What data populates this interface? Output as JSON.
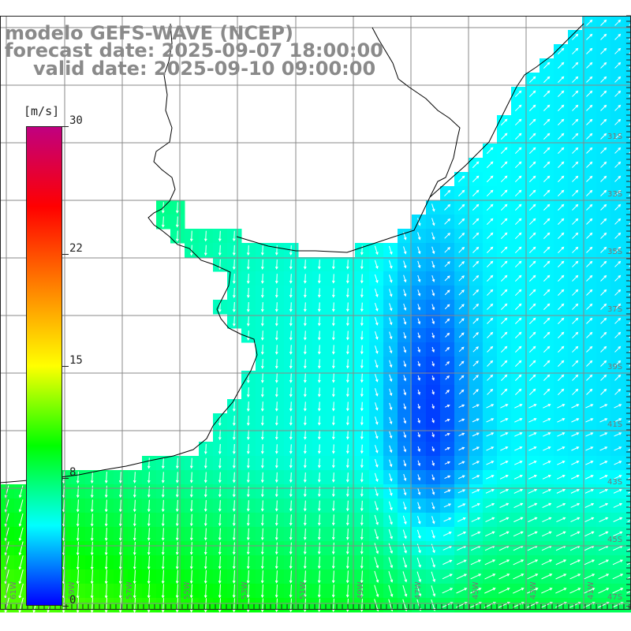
{
  "title": {
    "line1": "modelo GEFS-WAVE (NCEP)",
    "line2": "forecast date: 2025-09-07 18:00:00",
    "line3": "valid date: 2025-09-10 09:00:00"
  },
  "colorbar": {
    "unit": "[m/s]",
    "min": 0,
    "max": 30,
    "ticks": [
      {
        "label": "30",
        "value": 30
      },
      {
        "label": "22",
        "value": 22
      },
      {
        "label": "15",
        "value": 15
      },
      {
        "label": "8",
        "value": 8
      },
      {
        "label": "0",
        "value": 0
      }
    ],
    "stops": [
      "#0000ff",
      "#00ffff",
      "#00ff00",
      "#ffff00",
      "#ff8000",
      "#ff0000",
      "#c00080"
    ]
  },
  "map": {
    "land_color": "#ffffff",
    "grid_color": "#888888",
    "arrow_color": "#ffffff",
    "coastline_color": "#000000",
    "lon_labels": [
      "61W",
      "59W",
      "57W",
      "55W",
      "53W",
      "51W",
      "49W",
      "47W",
      "45W",
      "43W",
      "41W"
    ],
    "lat_labels": [
      "31S",
      "33S",
      "35S",
      "37S",
      "39S",
      "41S",
      "43S",
      "45S",
      "47S"
    ]
  }
}
